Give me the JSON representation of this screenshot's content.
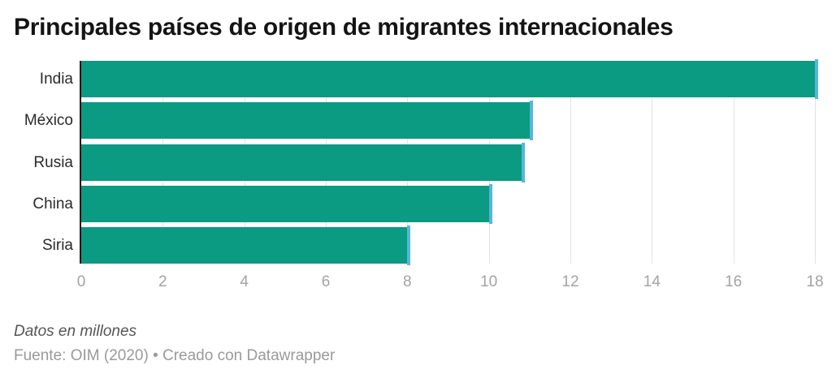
{
  "title": "Principales países de origen de migrantes internacionales",
  "chart_data": {
    "type": "bar",
    "orientation": "horizontal",
    "title": "Principales países de origen de migrantes internacionales",
    "categories": [
      "India",
      "México",
      "Rusia",
      "China",
      "Siria"
    ],
    "values": [
      18,
      11,
      10.8,
      10,
      8
    ],
    "xlim": [
      0,
      18.1
    ],
    "xticks": [
      0,
      2,
      4,
      6,
      8,
      10,
      12,
      14,
      16,
      18
    ],
    "xlabel": "",
    "ylabel": "",
    "grid": true,
    "legend": "none",
    "bar_color": "#0b9a82",
    "bar_end_color": "#58b6da",
    "unit_note": "Datos en millones"
  },
  "footer": {
    "note": "Datos en millones",
    "source": "Fuente: OIM (2020) • Creado con Datawrapper"
  }
}
